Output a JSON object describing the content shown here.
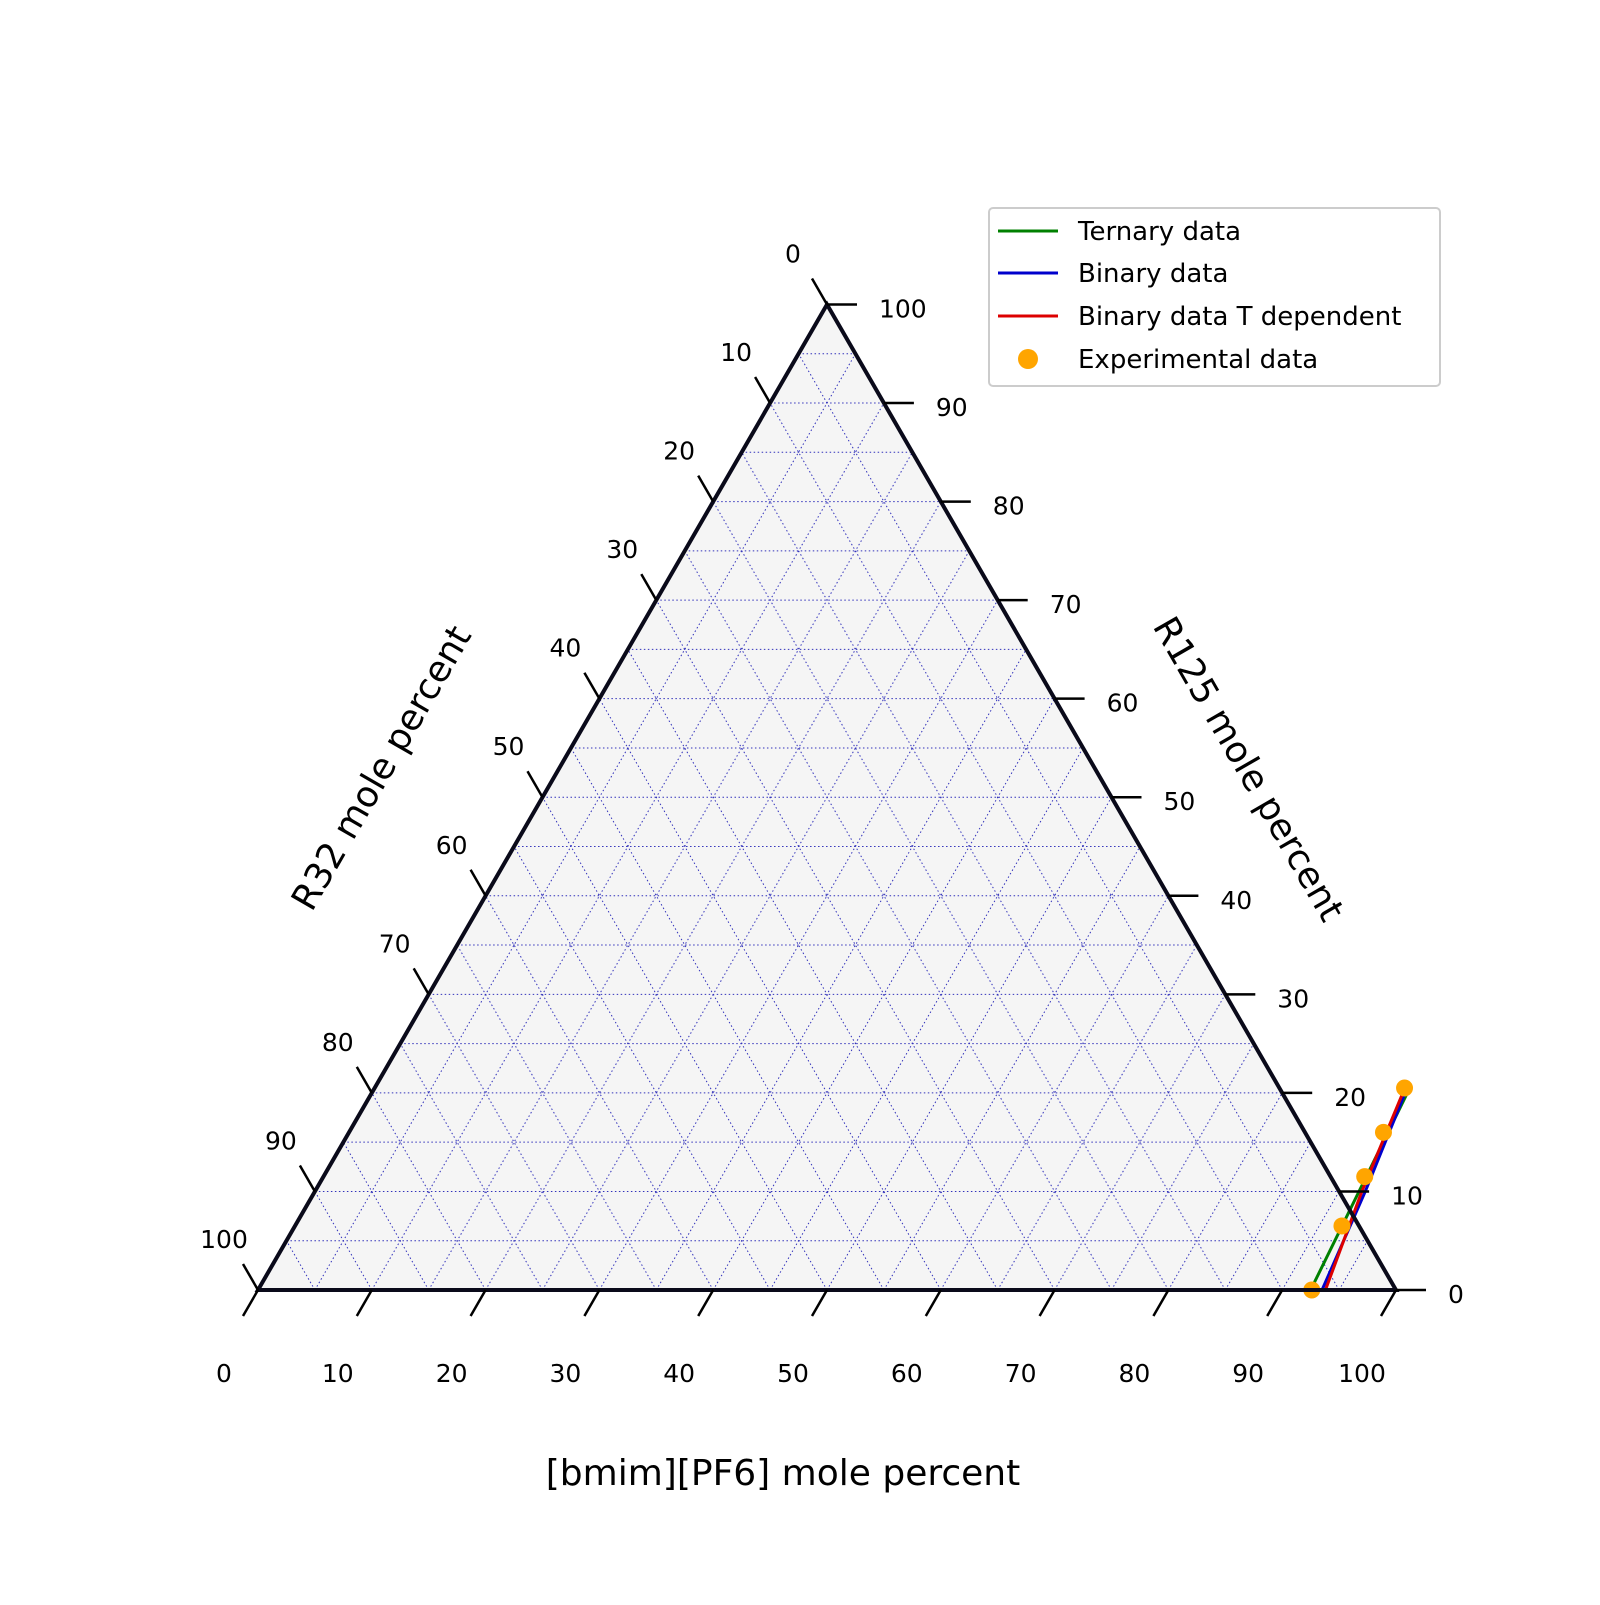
{
  "chart_data": {
    "type": "ternary",
    "axes": {
      "bottom": {
        "label": "[bmim][PF6] mole percent",
        "ticks": [
          "0",
          "10",
          "20",
          "30",
          "40",
          "50",
          "60",
          "70",
          "80",
          "90",
          "100"
        ]
      },
      "right": {
        "label": "R125 mole percent",
        "ticks": [
          "0",
          "10",
          "20",
          "30",
          "40",
          "50",
          "60",
          "70",
          "80",
          "90",
          "100"
        ]
      },
      "left": {
        "label": "R32 mole percent",
        "ticks": [
          "0",
          "10",
          "20",
          "30",
          "40",
          "50",
          "60",
          "70",
          "80",
          "90",
          "100"
        ]
      }
    },
    "grid": true,
    "grid_step": 5,
    "legend_position": "top-right",
    "series": [
      {
        "name": "Ternary data",
        "kind": "line",
        "color": "#008000",
        "points": [
          {
            "bmim_pf6": 91.0,
            "r125": 20.0
          },
          {
            "bmim_pf6": 92.5,
            "r125": 0.0
          }
        ]
      },
      {
        "name": "Binary data",
        "kind": "line",
        "color": "#0000cc",
        "points": [
          {
            "bmim_pf6": 90.8,
            "r125": 20.0
          },
          {
            "bmim_pf6": 92.3,
            "r125": 10.0
          },
          {
            "bmim_pf6": 93.5,
            "r125": 0.0
          }
        ]
      },
      {
        "name": "Binary data T dependent",
        "kind": "line",
        "color": "#dd0000",
        "points": [
          {
            "bmim_pf6": 90.6,
            "r125": 20.0
          },
          {
            "bmim_pf6": 92.0,
            "r125": 10.0
          },
          {
            "bmim_pf6": 93.8,
            "r125": 0.0
          }
        ]
      },
      {
        "name": "Experimental data",
        "kind": "scatter",
        "color": "#ffa500",
        "points": [
          {
            "bmim_pf6": 90.5,
            "r125": 20.5
          },
          {
            "bmim_pf6": 90.9,
            "r125": 16.0
          },
          {
            "bmim_pf6": 91.5,
            "r125": 11.5
          },
          {
            "bmim_pf6": 92.0,
            "r125": 6.5
          },
          {
            "bmim_pf6": 92.6,
            "r125": 0.0
          }
        ]
      }
    ]
  }
}
